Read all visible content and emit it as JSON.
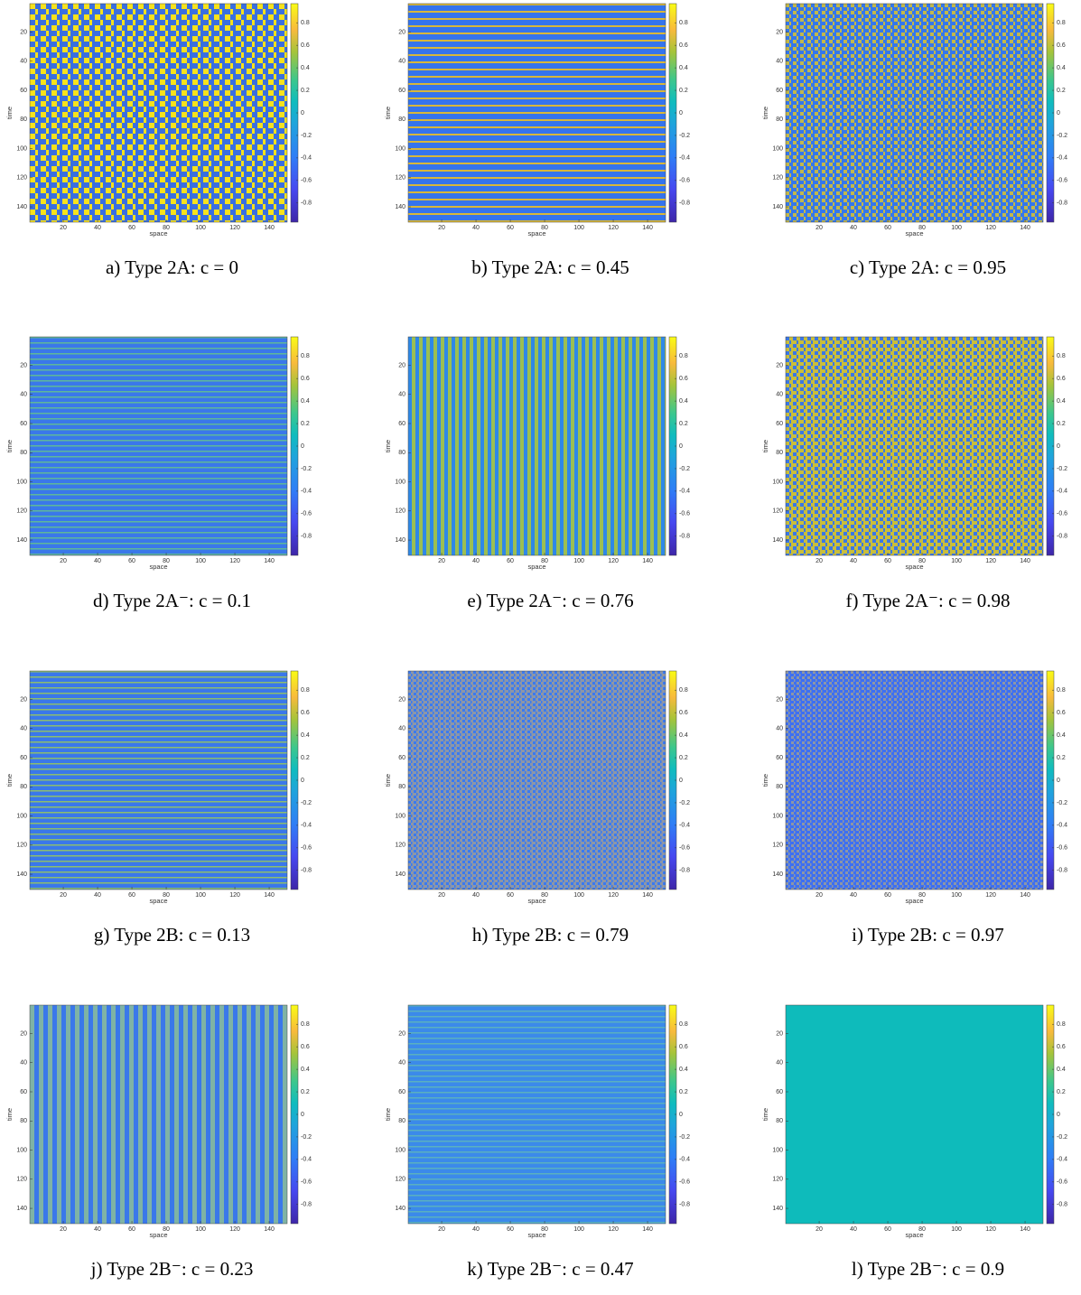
{
  "chart_data": [
    {
      "type": "heatmap",
      "caption": "a) Type 2A: c = 0",
      "xlabel": "space",
      "ylabel": "time",
      "xlim": [
        0.5,
        150.5
      ],
      "ylim": [
        0.5,
        150.5
      ],
      "yreverse": true,
      "xticks": [
        20,
        40,
        60,
        80,
        100,
        120,
        140
      ],
      "yticks": [
        20,
        40,
        60,
        80,
        100,
        120,
        140
      ],
      "clim": [
        -0.97,
        0.97
      ],
      "cticks": [
        -0.8,
        -0.6,
        -0.4,
        -0.2,
        0,
        0.2,
        0.4,
        0.6,
        0.8
      ]
    },
    {
      "type": "heatmap",
      "caption": "b) Type 2A: c = 0.45",
      "xlabel": "space",
      "ylabel": "time",
      "xlim": [
        0.5,
        150.5
      ],
      "ylim": [
        0.5,
        150.5
      ],
      "yreverse": true,
      "xticks": [
        20,
        40,
        60,
        80,
        100,
        120,
        140
      ],
      "yticks": [
        20,
        40,
        60,
        80,
        100,
        120,
        140
      ],
      "clim": [
        -0.97,
        0.97
      ],
      "cticks": [
        -0.8,
        -0.6,
        -0.4,
        -0.2,
        0,
        0.2,
        0.4,
        0.6,
        0.8
      ]
    },
    {
      "type": "heatmap",
      "caption": "c) Type 2A: c = 0.95",
      "xlabel": "space",
      "ylabel": "time",
      "xlim": [
        0.5,
        150.5
      ],
      "ylim": [
        0.5,
        150.5
      ],
      "yreverse": true,
      "xticks": [
        20,
        40,
        60,
        80,
        100,
        120,
        140
      ],
      "yticks": [
        20,
        40,
        60,
        80,
        100,
        120,
        140
      ],
      "clim": [
        -0.97,
        0.97
      ],
      "cticks": [
        -0.8,
        -0.6,
        -0.4,
        -0.2,
        0,
        0.2,
        0.4,
        0.6,
        0.8
      ]
    },
    {
      "type": "heatmap",
      "caption": "d) Type 2A⁻: c = 0.1",
      "xlabel": "space",
      "ylabel": "time",
      "xlim": [
        0.5,
        150.5
      ],
      "ylim": [
        0.5,
        150.5
      ],
      "yreverse": true,
      "xticks": [
        20,
        40,
        60,
        80,
        100,
        120,
        140
      ],
      "yticks": [
        20,
        40,
        60,
        80,
        100,
        120,
        140
      ],
      "clim": [
        -0.97,
        0.97
      ],
      "cticks": [
        -0.8,
        -0.6,
        -0.4,
        -0.2,
        0,
        0.2,
        0.4,
        0.6,
        0.8
      ]
    },
    {
      "type": "heatmap",
      "caption": "e) Type 2A⁻: c = 0.76",
      "xlabel": "space",
      "ylabel": "time",
      "xlim": [
        0.5,
        150.5
      ],
      "ylim": [
        0.5,
        150.5
      ],
      "yreverse": true,
      "xticks": [
        20,
        40,
        60,
        80,
        100,
        120,
        140
      ],
      "yticks": [
        20,
        40,
        60,
        80,
        100,
        120,
        140
      ],
      "clim": [
        -0.97,
        0.97
      ],
      "cticks": [
        -0.8,
        -0.6,
        -0.4,
        -0.2,
        0,
        0.2,
        0.4,
        0.6,
        0.8
      ]
    },
    {
      "type": "heatmap",
      "caption": "f) Type 2A⁻: c = 0.98",
      "xlabel": "space",
      "ylabel": "time",
      "xlim": [
        0.5,
        150.5
      ],
      "ylim": [
        0.5,
        150.5
      ],
      "yreverse": true,
      "xticks": [
        20,
        40,
        60,
        80,
        100,
        120,
        140
      ],
      "yticks": [
        20,
        40,
        60,
        80,
        100,
        120,
        140
      ],
      "clim": [
        -0.97,
        0.97
      ],
      "cticks": [
        -0.8,
        -0.6,
        -0.4,
        -0.2,
        0,
        0.2,
        0.4,
        0.6,
        0.8
      ]
    },
    {
      "type": "heatmap",
      "caption": "g) Type 2B: c = 0.13",
      "xlabel": "space",
      "ylabel": "time",
      "xlim": [
        0.5,
        150.5
      ],
      "ylim": [
        0.5,
        150.5
      ],
      "yreverse": true,
      "xticks": [
        20,
        40,
        60,
        80,
        100,
        120,
        140
      ],
      "yticks": [
        20,
        40,
        60,
        80,
        100,
        120,
        140
      ],
      "clim": [
        -0.97,
        0.97
      ],
      "cticks": [
        -0.8,
        -0.6,
        -0.4,
        -0.2,
        0,
        0.2,
        0.4,
        0.6,
        0.8
      ]
    },
    {
      "type": "heatmap",
      "caption": "h) Type 2B: c = 0.79",
      "xlabel": "space",
      "ylabel": "time",
      "xlim": [
        0.5,
        150.5
      ],
      "ylim": [
        0.5,
        150.5
      ],
      "yreverse": true,
      "xticks": [
        20,
        40,
        60,
        80,
        100,
        120,
        140
      ],
      "yticks": [
        20,
        40,
        60,
        80,
        100,
        120,
        140
      ],
      "clim": [
        -0.97,
        0.97
      ],
      "cticks": [
        -0.8,
        -0.6,
        -0.4,
        -0.2,
        0,
        0.2,
        0.4,
        0.6,
        0.8
      ]
    },
    {
      "type": "heatmap",
      "caption": "i) Type 2B: c = 0.97",
      "xlabel": "space",
      "ylabel": "time",
      "xlim": [
        0.5,
        150.5
      ],
      "ylim": [
        0.5,
        150.5
      ],
      "yreverse": true,
      "xticks": [
        20,
        40,
        60,
        80,
        100,
        120,
        140
      ],
      "yticks": [
        20,
        40,
        60,
        80,
        100,
        120,
        140
      ],
      "clim": [
        -0.97,
        0.97
      ],
      "cticks": [
        -0.8,
        -0.6,
        -0.4,
        -0.2,
        0,
        0.2,
        0.4,
        0.6,
        0.8
      ]
    },
    {
      "type": "heatmap",
      "caption": "j) Type 2B⁻: c = 0.23",
      "xlabel": "space",
      "ylabel": "time",
      "xlim": [
        0.5,
        150.5
      ],
      "ylim": [
        0.5,
        150.5
      ],
      "yreverse": true,
      "xticks": [
        20,
        40,
        60,
        80,
        100,
        120,
        140
      ],
      "yticks": [
        20,
        40,
        60,
        80,
        100,
        120,
        140
      ],
      "clim": [
        -0.97,
        0.97
      ],
      "cticks": [
        -0.8,
        -0.6,
        -0.4,
        -0.2,
        0,
        0.2,
        0.4,
        0.6,
        0.8
      ]
    },
    {
      "type": "heatmap",
      "caption": "k) Type 2B⁻: c = 0.47",
      "xlabel": "space",
      "ylabel": "time",
      "xlim": [
        0.5,
        150.5
      ],
      "ylim": [
        0.5,
        150.5
      ],
      "yreverse": true,
      "xticks": [
        20,
        40,
        60,
        80,
        100,
        120,
        140
      ],
      "yticks": [
        20,
        40,
        60,
        80,
        100,
        120,
        140
      ],
      "clim": [
        -0.97,
        0.97
      ],
      "cticks": [
        -0.8,
        -0.6,
        -0.4,
        -0.2,
        0,
        0.2,
        0.4,
        0.6,
        0.8
      ]
    },
    {
      "type": "heatmap",
      "caption": "l) Type 2B⁻: c = 0.9",
      "xlabel": "space",
      "ylabel": "time",
      "xlim": [
        0.5,
        150.5
      ],
      "ylim": [
        0.5,
        150.5
      ],
      "yreverse": true,
      "xticks": [
        20,
        40,
        60,
        80,
        100,
        120,
        140
      ],
      "yticks": [
        20,
        40,
        60,
        80,
        100,
        120,
        140
      ],
      "clim": [
        -0.97,
        0.97
      ],
      "cticks": [
        -0.8,
        -0.6,
        -0.4,
        -0.2,
        0,
        0.2,
        0.4,
        0.6,
        0.8
      ]
    }
  ]
}
